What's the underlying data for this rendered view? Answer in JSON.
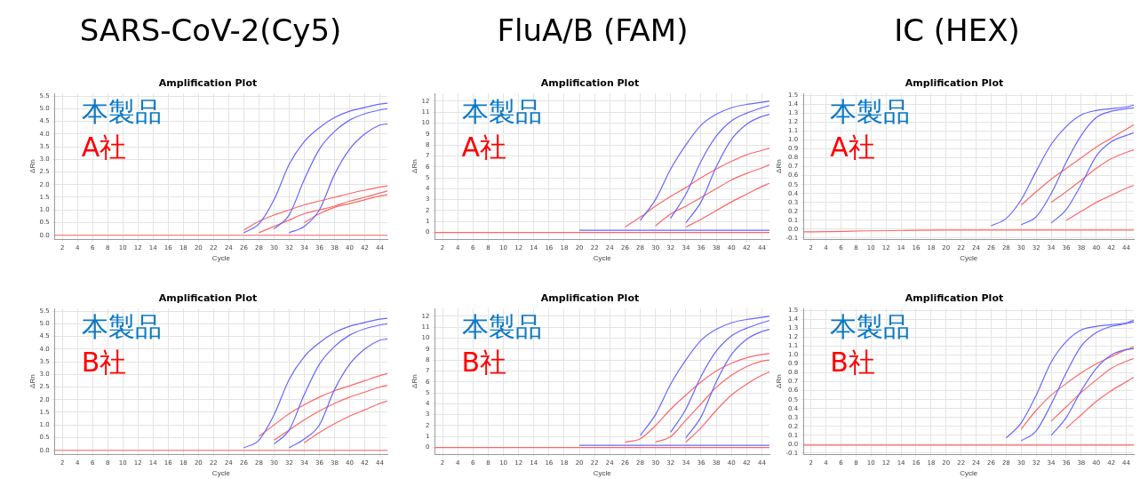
{
  "chart_data": [
    {
      "type": "line",
      "subtitle": "SARS-CoV-2(Cy5)",
      "title": "Amplification Plot",
      "xlabel": "Cycle",
      "ylabel": "ΔRn",
      "annotations": [
        "本製品",
        "A社"
      ],
      "grid": true,
      "x": [
        1,
        20,
        24,
        26,
        28,
        30,
        32,
        34,
        36,
        38,
        40,
        42,
        44,
        45
      ],
      "series": [
        {
          "color": "#6666ff",
          "values": [
            null,
            null,
            null,
            0.1,
            0.45,
            1.4,
            2.8,
            3.7,
            4.25,
            4.65,
            4.9,
            5.05,
            5.18,
            5.22
          ]
        },
        {
          "color": "#6666ff",
          "values": [
            null,
            null,
            null,
            null,
            null,
            0.25,
            0.8,
            2.2,
            3.4,
            4.1,
            4.55,
            4.8,
            4.95,
            5.0
          ]
        },
        {
          "color": "#6666ff",
          "values": [
            null,
            null,
            null,
            null,
            null,
            null,
            0.1,
            0.35,
            1.0,
            2.4,
            3.4,
            4.0,
            4.35,
            4.4
          ]
        },
        {
          "color": "#ff6666",
          "values": [
            null,
            null,
            null,
            0.2,
            0.55,
            0.8,
            1.0,
            1.2,
            1.35,
            1.5,
            1.65,
            1.78,
            1.9,
            1.95
          ]
        },
        {
          "color": "#ff6666",
          "values": [
            null,
            null,
            null,
            null,
            0.1,
            0.35,
            0.6,
            0.85,
            1.0,
            1.15,
            1.35,
            1.5,
            1.67,
            1.75
          ]
        },
        {
          "color": "#ff6666",
          "values": [
            null,
            null,
            null,
            null,
            null,
            null,
            null,
            0.5,
            0.85,
            1.1,
            1.25,
            1.4,
            1.55,
            1.6
          ]
        },
        {
          "color": "#ff6666",
          "values": [
            0,
            0,
            0,
            0,
            0,
            0,
            0,
            0,
            0,
            0,
            0,
            0,
            0,
            0
          ]
        }
      ],
      "xlim": [
        1,
        45
      ],
      "ylim": [
        -0.15,
        5.6
      ],
      "xticks": [
        2,
        4,
        6,
        8,
        10,
        12,
        14,
        16,
        18,
        20,
        22,
        24,
        26,
        28,
        30,
        32,
        34,
        36,
        38,
        40,
        42,
        44
      ],
      "yticks": [
        {
          "value": 0,
          "label": "0.0"
        },
        {
          "value": 0.5,
          "label": "0.5"
        },
        {
          "value": 1,
          "label": "1.0"
        },
        {
          "value": 1.5,
          "label": "1.5"
        },
        {
          "value": 2,
          "label": "2.0"
        },
        {
          "value": 2.5,
          "label": "2.5"
        },
        {
          "value": 3,
          "label": "3.0"
        },
        {
          "value": 3.5,
          "label": "3.5"
        },
        {
          "value": 4,
          "label": "4.0"
        },
        {
          "value": 4.5,
          "label": "4.5"
        },
        {
          "value": 5,
          "label": "5.0"
        },
        {
          "value": 5.5,
          "label": "5.5"
        }
      ]
    },
    {
      "type": "line",
      "subtitle": "FluA/B (FAM)",
      "title": "Amplification Plot",
      "xlabel": "Cycle",
      "ylabel": "ΔRn",
      "annotations": [
        "本製品",
        "A社"
      ],
      "grid": true,
      "x": [
        1,
        20,
        24,
        26,
        28,
        30,
        32,
        34,
        36,
        38,
        40,
        42,
        44,
        45
      ],
      "series": [
        {
          "color": "#6666ff",
          "values": [
            null,
            null,
            null,
            null,
            1.1,
            3.0,
            5.8,
            8.0,
            9.8,
            10.8,
            11.4,
            11.7,
            11.9,
            12.0
          ]
        },
        {
          "color": "#6666ff",
          "values": [
            null,
            null,
            null,
            null,
            null,
            null,
            1.3,
            3.5,
            6.5,
            8.8,
            10.2,
            10.9,
            11.4,
            11.6
          ]
        },
        {
          "color": "#6666ff",
          "values": [
            null,
            null,
            null,
            null,
            null,
            null,
            null,
            0.9,
            2.8,
            6.0,
            8.5,
            9.9,
            10.6,
            10.8
          ]
        },
        {
          "color": "#6666ff",
          "values": [
            null,
            0.2,
            0.2,
            0.2,
            0.2,
            0.2,
            0.2,
            0.2,
            0.2,
            0.2,
            0.2,
            0.2,
            0.2,
            0.2
          ]
        },
        {
          "color": "#ff6666",
          "values": [
            null,
            null,
            null,
            0.5,
            1.4,
            2.4,
            3.3,
            4.1,
            5.0,
            5.8,
            6.5,
            7.1,
            7.5,
            7.7
          ]
        },
        {
          "color": "#ff6666",
          "values": [
            null,
            null,
            null,
            null,
            null,
            0.6,
            1.7,
            2.4,
            3.2,
            4.0,
            4.8,
            5.4,
            5.9,
            6.2
          ]
        },
        {
          "color": "#ff6666",
          "values": [
            null,
            null,
            null,
            null,
            null,
            null,
            null,
            0.5,
            1.2,
            2.0,
            2.8,
            3.5,
            4.2,
            4.5
          ]
        },
        {
          "color": "#ff6666",
          "values": [
            0,
            0,
            0,
            0,
            0,
            0,
            0,
            0,
            0,
            0,
            0,
            0,
            0,
            0
          ]
        }
      ],
      "xlim": [
        1,
        45
      ],
      "ylim": [
        -0.6,
        12.7
      ],
      "xticks": [
        2,
        4,
        6,
        8,
        10,
        12,
        14,
        16,
        18,
        20,
        22,
        24,
        26,
        28,
        30,
        32,
        34,
        36,
        38,
        40,
        42,
        44
      ],
      "yticks": [
        0,
        1,
        2,
        3,
        4,
        5,
        6,
        7,
        8,
        9,
        10,
        11,
        12
      ]
    },
    {
      "type": "line",
      "subtitle": "IC (HEX)",
      "title": "Amplification Plot",
      "xlabel": "Cycle",
      "ylabel": "ΔRn",
      "annotations": [
        "本製品",
        "A社"
      ],
      "grid": true,
      "x": [
        1,
        20,
        24,
        26,
        28,
        30,
        32,
        34,
        36,
        38,
        40,
        42,
        44,
        45
      ],
      "series": [
        {
          "color": "#6666ff",
          "values": [
            null,
            null,
            null,
            0.04,
            0.12,
            0.33,
            0.65,
            0.95,
            1.15,
            1.28,
            1.33,
            1.35,
            1.37,
            1.39
          ]
        },
        {
          "color": "#6666ff",
          "values": [
            null,
            null,
            null,
            null,
            null,
            0.05,
            0.14,
            0.4,
            0.75,
            1.05,
            1.25,
            1.32,
            1.35,
            1.36
          ]
        },
        {
          "color": "#6666ff",
          "values": [
            null,
            null,
            null,
            null,
            null,
            null,
            null,
            0.07,
            0.22,
            0.5,
            0.82,
            0.98,
            1.05,
            1.08
          ]
        },
        {
          "color": "#ff6666",
          "values": [
            null,
            null,
            null,
            null,
            null,
            0.27,
            0.42,
            0.56,
            0.68,
            0.8,
            0.92,
            1.02,
            1.12,
            1.17
          ]
        },
        {
          "color": "#ff6666",
          "values": [
            null,
            null,
            null,
            null,
            null,
            null,
            null,
            0.3,
            0.42,
            0.55,
            0.68,
            0.79,
            0.86,
            0.89
          ]
        },
        {
          "color": "#ff6666",
          "values": [
            null,
            null,
            null,
            null,
            null,
            null,
            null,
            null,
            0.1,
            0.2,
            0.3,
            0.38,
            0.46,
            0.49
          ]
        },
        {
          "color": "#ff6666",
          "values": [
            -0.03,
            -0.01,
            -0.01,
            -0.01,
            -0.01,
            -0.01,
            -0.01,
            -0.01,
            -0.01,
            -0.01,
            -0.01,
            -0.01,
            -0.01,
            -0.01
          ]
        }
      ],
      "xlim": [
        1,
        45
      ],
      "ylim": [
        -0.11,
        1.52
      ],
      "xticks": [
        2,
        4,
        6,
        8,
        10,
        12,
        14,
        16,
        18,
        20,
        22,
        24,
        26,
        28,
        30,
        32,
        34,
        36,
        38,
        40,
        42,
        44
      ],
      "yticks": [
        {
          "value": -0.1,
          "label": "-0.1"
        },
        {
          "value": 0,
          "label": "0.0"
        },
        {
          "value": 0.1,
          "label": "0.1"
        },
        {
          "value": 0.2,
          "label": "0.2"
        },
        {
          "value": 0.3,
          "label": "0.3"
        },
        {
          "value": 0.4,
          "label": "0.4"
        },
        {
          "value": 0.5,
          "label": "0.5"
        },
        {
          "value": 0.6,
          "label": "0.6"
        },
        {
          "value": 0.7,
          "label": "0.7"
        },
        {
          "value": 0.8,
          "label": "0.8"
        },
        {
          "value": 0.9,
          "label": "0.9"
        },
        {
          "value": 1,
          "label": "1.0"
        },
        {
          "value": 1.1,
          "label": "1.1"
        },
        {
          "value": 1.2,
          "label": "1.2"
        },
        {
          "value": 1.3,
          "label": "1.3"
        },
        {
          "value": 1.4,
          "label": "1.4"
        },
        {
          "value": 1.5,
          "label": "1.5"
        }
      ]
    },
    {
      "type": "line",
      "title": "Amplification Plot",
      "xlabel": "Cycle",
      "ylabel": "ΔRn",
      "annotations": [
        "本製品",
        "B社"
      ],
      "grid": true,
      "x": [
        1,
        20,
        24,
        26,
        28,
        30,
        32,
        34,
        36,
        38,
        40,
        42,
        44,
        45
      ],
      "series": [
        {
          "color": "#6666ff",
          "values": [
            null,
            null,
            null,
            0.1,
            0.4,
            1.4,
            2.8,
            3.7,
            4.25,
            4.65,
            4.9,
            5.05,
            5.18,
            5.22
          ]
        },
        {
          "color": "#6666ff",
          "values": [
            null,
            null,
            null,
            null,
            null,
            0.25,
            0.8,
            2.2,
            3.4,
            4.1,
            4.55,
            4.8,
            4.95,
            5.0
          ]
        },
        {
          "color": "#6666ff",
          "values": [
            null,
            null,
            null,
            null,
            null,
            null,
            0.1,
            0.45,
            1.0,
            2.4,
            3.4,
            4.0,
            4.35,
            4.4
          ]
        },
        {
          "color": "#ff6666",
          "values": [
            null,
            null,
            null,
            null,
            0.55,
            1.0,
            1.45,
            1.8,
            2.1,
            2.35,
            2.55,
            2.75,
            2.95,
            3.03
          ]
        },
        {
          "color": "#ff6666",
          "values": [
            null,
            null,
            null,
            null,
            null,
            0.4,
            0.8,
            1.2,
            1.55,
            1.85,
            2.1,
            2.3,
            2.5,
            2.57
          ]
        },
        {
          "color": "#ff6666",
          "values": [
            null,
            null,
            null,
            null,
            null,
            null,
            null,
            0.3,
            0.7,
            1.05,
            1.35,
            1.6,
            1.85,
            1.95
          ]
        },
        {
          "color": "#ff6666",
          "values": [
            0,
            0,
            0,
            0,
            0,
            0,
            0,
            0,
            0,
            0,
            0,
            0,
            0,
            0
          ]
        }
      ],
      "xlim": [
        1,
        45
      ],
      "ylim": [
        -0.15,
        5.6
      ],
      "xticks": [
        2,
        4,
        6,
        8,
        10,
        12,
        14,
        16,
        18,
        20,
        22,
        24,
        26,
        28,
        30,
        32,
        34,
        36,
        38,
        40,
        42,
        44
      ],
      "yticks": [
        {
          "value": 0,
          "label": "0.0"
        },
        {
          "value": 0.5,
          "label": "0.5"
        },
        {
          "value": 1,
          "label": "1.0"
        },
        {
          "value": 1.5,
          "label": "1.5"
        },
        {
          "value": 2,
          "label": "2.0"
        },
        {
          "value": 2.5,
          "label": "2.5"
        },
        {
          "value": 3,
          "label": "3.0"
        },
        {
          "value": 3.5,
          "label": "3.5"
        },
        {
          "value": 4,
          "label": "4.0"
        },
        {
          "value": 4.5,
          "label": "4.5"
        },
        {
          "value": 5,
          "label": "5.0"
        },
        {
          "value": 5.5,
          "label": "5.5"
        }
      ]
    },
    {
      "type": "line",
      "title": "Amplification Plot",
      "xlabel": "Cycle",
      "ylabel": "ΔRn",
      "annotations": [
        "本製品",
        "B社"
      ],
      "grid": true,
      "x": [
        1,
        20,
        24,
        26,
        28,
        30,
        32,
        34,
        36,
        38,
        40,
        42,
        44,
        45
      ],
      "series": [
        {
          "color": "#6666ff",
          "values": [
            null,
            null,
            null,
            null,
            1.1,
            3.0,
            5.8,
            8.0,
            9.8,
            10.8,
            11.4,
            11.7,
            11.9,
            12.0
          ]
        },
        {
          "color": "#6666ff",
          "values": [
            null,
            null,
            null,
            null,
            null,
            null,
            1.4,
            3.5,
            6.5,
            8.8,
            10.2,
            10.9,
            11.4,
            11.6
          ]
        },
        {
          "color": "#6666ff",
          "values": [
            null,
            null,
            null,
            null,
            null,
            null,
            null,
            0.9,
            2.8,
            6.0,
            8.5,
            9.9,
            10.6,
            10.8
          ]
        },
        {
          "color": "#6666ff",
          "values": [
            null,
            0.2,
            0.2,
            0.2,
            0.2,
            0.2,
            0.2,
            0.2,
            0.2,
            0.2,
            0.2,
            0.2,
            0.2,
            0.2
          ]
        },
        {
          "color": "#ff6666",
          "values": [
            null,
            null,
            null,
            0.5,
            0.8,
            2.0,
            3.5,
            4.8,
            6.0,
            7.0,
            7.7,
            8.2,
            8.5,
            8.6
          ]
        },
        {
          "color": "#ff6666",
          "values": [
            null,
            null,
            null,
            null,
            null,
            0.5,
            1.0,
            2.5,
            4.0,
            5.5,
            6.6,
            7.4,
            7.9,
            8.0
          ]
        },
        {
          "color": "#ff6666",
          "values": [
            null,
            null,
            null,
            null,
            null,
            null,
            null,
            0.5,
            1.8,
            3.4,
            4.8,
            5.8,
            6.6,
            6.9
          ]
        },
        {
          "color": "#ff6666",
          "values": [
            0,
            0,
            0,
            0,
            0,
            0,
            0,
            0,
            0,
            0,
            0,
            0,
            0,
            0
          ]
        }
      ],
      "xlim": [
        1,
        45
      ],
      "ylim": [
        -0.6,
        12.7
      ],
      "xticks": [
        2,
        4,
        6,
        8,
        10,
        12,
        14,
        16,
        18,
        20,
        22,
        24,
        26,
        28,
        30,
        32,
        34,
        36,
        38,
        40,
        42,
        44
      ],
      "yticks": [
        0,
        1,
        2,
        3,
        4,
        5,
        6,
        7,
        8,
        9,
        10,
        11,
        12
      ]
    },
    {
      "type": "line",
      "title": "Amplification Plot",
      "xlabel": "Cycle",
      "ylabel": "ΔRn",
      "annotations": [
        "本製品",
        "B社"
      ],
      "grid": true,
      "x": [
        1,
        20,
        24,
        26,
        28,
        30,
        32,
        34,
        36,
        38,
        40,
        42,
        44,
        45
      ],
      "series": [
        {
          "color": "#6666ff",
          "values": [
            null,
            null,
            null,
            null,
            0.07,
            0.24,
            0.55,
            0.92,
            1.15,
            1.28,
            1.32,
            1.34,
            1.36,
            1.39
          ]
        },
        {
          "color": "#6666ff",
          "values": [
            null,
            null,
            null,
            null,
            null,
            0.04,
            0.15,
            0.45,
            0.8,
            1.1,
            1.25,
            1.32,
            1.35,
            1.37
          ]
        },
        {
          "color": "#6666ff",
          "values": [
            null,
            null,
            null,
            null,
            null,
            null,
            null,
            0.1,
            0.3,
            0.6,
            0.85,
            1.0,
            1.06,
            1.07
          ]
        },
        {
          "color": "#ff6666",
          "values": [
            null,
            null,
            null,
            null,
            null,
            0.17,
            0.38,
            0.55,
            0.68,
            0.8,
            0.9,
            0.98,
            1.06,
            1.09
          ]
        },
        {
          "color": "#ff6666",
          "values": [
            null,
            null,
            null,
            null,
            null,
            null,
            null,
            0.26,
            0.42,
            0.58,
            0.72,
            0.85,
            0.93,
            0.96
          ]
        },
        {
          "color": "#ff6666",
          "values": [
            null,
            null,
            null,
            null,
            null,
            null,
            null,
            null,
            0.18,
            0.33,
            0.48,
            0.6,
            0.7,
            0.75
          ]
        },
        {
          "color": "#ff6666",
          "values": [
            -0.01,
            -0.01,
            -0.01,
            -0.01,
            -0.01,
            -0.01,
            -0.01,
            -0.01,
            -0.01,
            -0.01,
            -0.01,
            -0.01,
            -0.01,
            -0.01
          ]
        }
      ],
      "xlim": [
        1,
        45
      ],
      "ylim": [
        -0.11,
        1.52
      ],
      "xticks": [
        2,
        4,
        6,
        8,
        10,
        12,
        14,
        16,
        18,
        20,
        22,
        24,
        26,
        28,
        30,
        32,
        34,
        36,
        38,
        40,
        42,
        44
      ],
      "yticks": [
        {
          "value": -0.1,
          "label": "-0.1"
        },
        {
          "value": 0,
          "label": "0.0"
        },
        {
          "value": 0.1,
          "label": "0.1"
        },
        {
          "value": 0.2,
          "label": "0.2"
        },
        {
          "value": 0.3,
          "label": "0.3"
        },
        {
          "value": 0.4,
          "label": "0.4"
        },
        {
          "value": 0.5,
          "label": "0.5"
        },
        {
          "value": 0.6,
          "label": "0.6"
        },
        {
          "value": 0.7,
          "label": "0.7"
        },
        {
          "value": 0.8,
          "label": "0.8"
        },
        {
          "value": 0.9,
          "label": "0.9"
        },
        {
          "value": 1,
          "label": "1.0"
        },
        {
          "value": 1.1,
          "label": "1.1"
        },
        {
          "value": 1.2,
          "label": "1.2"
        },
        {
          "value": 1.3,
          "label": "1.3"
        },
        {
          "value": 1.4,
          "label": "1.4"
        },
        {
          "value": 1.5,
          "label": "1.5"
        }
      ]
    }
  ]
}
